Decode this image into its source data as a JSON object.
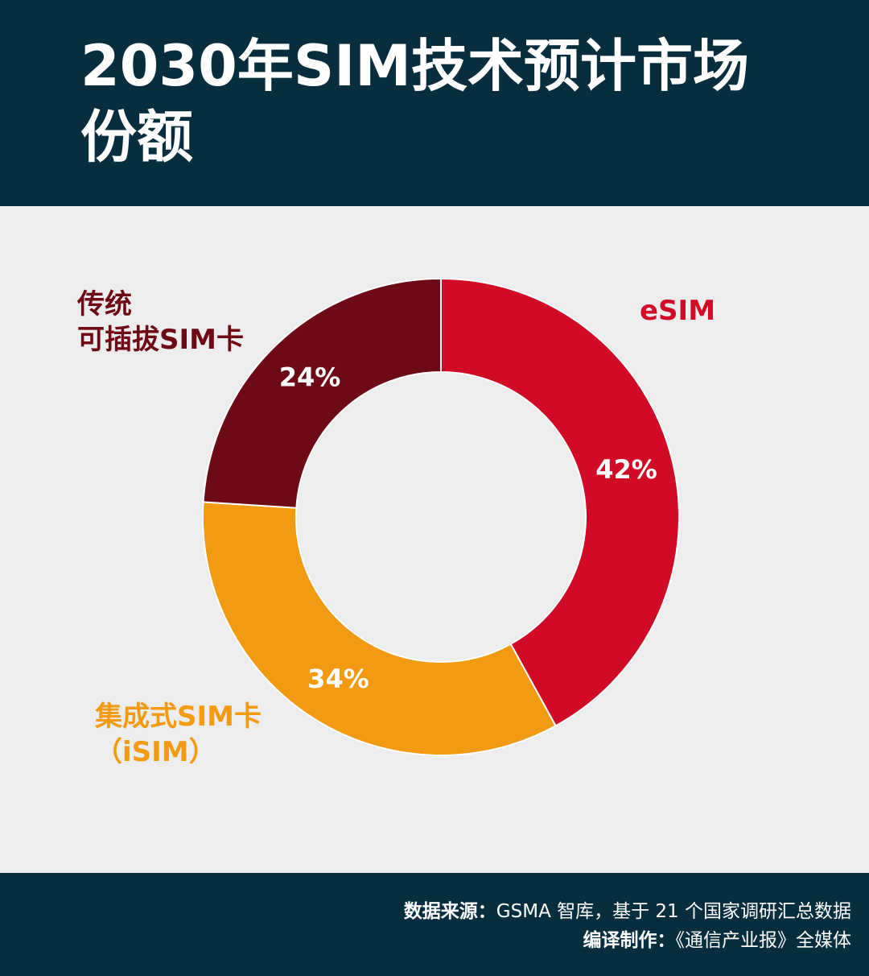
{
  "header": {
    "title_line1": "2030年SIM技术预计市场",
    "title_line2": "份额"
  },
  "chart_data": {
    "type": "pie",
    "variant": "donut",
    "categories": [
      "eSIM",
      "集成式SIM卡（iSIM）",
      "传统可插拔SIM卡"
    ],
    "values": [
      42,
      34,
      24
    ],
    "value_labels": [
      "42%",
      "34%",
      "24%"
    ],
    "colors": [
      "#d10a26",
      "#f29a12",
      "#6e0a15"
    ],
    "start": "12 o'clock",
    "direction": "clockwise"
  },
  "labels": {
    "esim": [
      "eSIM"
    ],
    "isim": [
      "集成式SIM卡",
      "（iSIM）"
    ],
    "legacy": [
      "传统",
      "可插拔SIM卡"
    ]
  },
  "footer": {
    "source_key": "数据来源：",
    "source_value": "GSMA 智库，基于 21 个国家调研汇总数据",
    "credit_key": "编译制作：",
    "credit_value": "《通信产业报》全媒体"
  },
  "colors": {
    "header_bg": "#062e3f",
    "page_bg": "#ededed",
    "label_legacy": "#6e0a15",
    "label_esim": "#d10a26",
    "label_isim": "#f29a12"
  }
}
